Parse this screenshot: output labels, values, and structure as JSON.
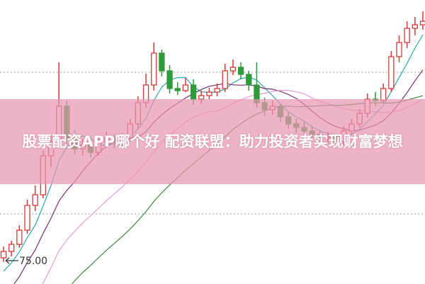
{
  "title": "股票配资APP哪个好 配资联盟：助力投资者实现财富梦想",
  "chart_data": {
    "type": "candlestick",
    "ylim": [
      73.35,
      93.4
    ],
    "grid": "horizontal-dotted",
    "gridlines": [
      78.3,
      88.3
    ],
    "annotation": {
      "text": "75.00",
      "value": 75.0
    },
    "colors": {
      "up": "#d23a3a",
      "down": "#2e9a3a",
      "ma5": "#2aa8a8",
      "ma10": "#7a2e6e",
      "ma20": "#e59ad8",
      "ma30": "#3a8a3a",
      "grid": "#999999"
    },
    "moving_averages": [
      5,
      10,
      20,
      30
    ],
    "ohlc": [
      [
        75.2,
        76.0,
        74.9,
        75.65
      ],
      [
        75.65,
        76.4,
        75.3,
        76.15
      ],
      [
        76.15,
        77.5,
        75.9,
        77.15
      ],
      [
        77.15,
        79.3,
        76.9,
        78.9
      ],
      [
        78.9,
        80.3,
        78.5,
        79.65
      ],
      [
        79.65,
        82.8,
        79.4,
        82.4
      ],
      [
        82.4,
        83.9,
        81.6,
        83.4
      ],
      [
        83.4,
        89.0,
        83.0,
        85.9
      ],
      [
        85.9,
        86.3,
        83.2,
        83.65
      ],
      [
        83.65,
        84.2,
        82.5,
        82.9
      ],
      [
        82.9,
        83.6,
        82.4,
        83.15
      ],
      [
        83.15,
        83.5,
        82.3,
        82.65
      ],
      [
        82.65,
        83.8,
        82.4,
        83.4
      ],
      [
        83.4,
        84.1,
        83.0,
        83.65
      ],
      [
        83.65,
        83.9,
        82.9,
        83.4
      ],
      [
        83.4,
        84.0,
        83.1,
        83.65
      ],
      [
        83.65,
        85.0,
        83.4,
        84.65
      ],
      [
        84.65,
        86.6,
        84.3,
        86.15
      ],
      [
        86.15,
        88.2,
        85.8,
        87.4
      ],
      [
        87.4,
        90.4,
        87.0,
        89.65
      ],
      [
        89.65,
        89.9,
        88.0,
        88.4
      ],
      [
        88.4,
        88.8,
        86.8,
        87.15
      ],
      [
        87.15,
        87.6,
        86.7,
        87.0
      ],
      [
        87.0,
        87.9,
        86.9,
        87.4
      ],
      [
        87.4,
        87.8,
        86.0,
        86.4
      ],
      [
        86.4,
        87.0,
        86.1,
        86.65
      ],
      [
        86.65,
        87.2,
        86.4,
        86.9
      ],
      [
        86.9,
        87.5,
        86.6,
        87.15
      ],
      [
        87.15,
        88.9,
        86.9,
        88.4
      ],
      [
        88.4,
        89.2,
        88.1,
        88.65
      ],
      [
        88.65,
        89.0,
        87.8,
        88.15
      ],
      [
        88.15,
        88.4,
        87.0,
        87.4
      ],
      [
        87.4,
        89.0,
        85.8,
        86.15
      ],
      [
        86.15,
        86.5,
        85.2,
        85.65
      ],
      [
        85.65,
        86.3,
        85.3,
        85.9
      ],
      [
        85.9,
        86.1,
        84.8,
        85.15
      ],
      [
        85.15,
        85.5,
        84.3,
        84.65
      ],
      [
        84.65,
        85.0,
        84.0,
        84.4
      ],
      [
        84.4,
        84.8,
        83.8,
        84.15
      ],
      [
        84.15,
        84.5,
        83.5,
        83.9
      ],
      [
        83.9,
        84.2,
        83.3,
        83.65
      ],
      [
        83.65,
        84.1,
        83.2,
        83.75
      ],
      [
        83.75,
        83.9,
        82.9,
        83.4
      ],
      [
        83.4,
        84.5,
        83.2,
        84.15
      ],
      [
        84.15,
        85.0,
        83.9,
        84.65
      ],
      [
        84.65,
        85.7,
        84.4,
        85.4
      ],
      [
        85.4,
        86.8,
        85.1,
        86.4
      ],
      [
        86.4,
        86.9,
        85.9,
        86.3
      ],
      [
        86.3,
        87.5,
        86.1,
        87.15
      ],
      [
        87.15,
        89.8,
        86.9,
        89.4
      ],
      [
        89.4,
        90.9,
        89.0,
        90.4
      ],
      [
        90.4,
        91.9,
        90.0,
        91.4
      ],
      [
        91.4,
        92.2,
        90.9,
        91.65
      ],
      [
        91.65,
        92.6,
        91.3,
        91.9
      ]
    ]
  }
}
